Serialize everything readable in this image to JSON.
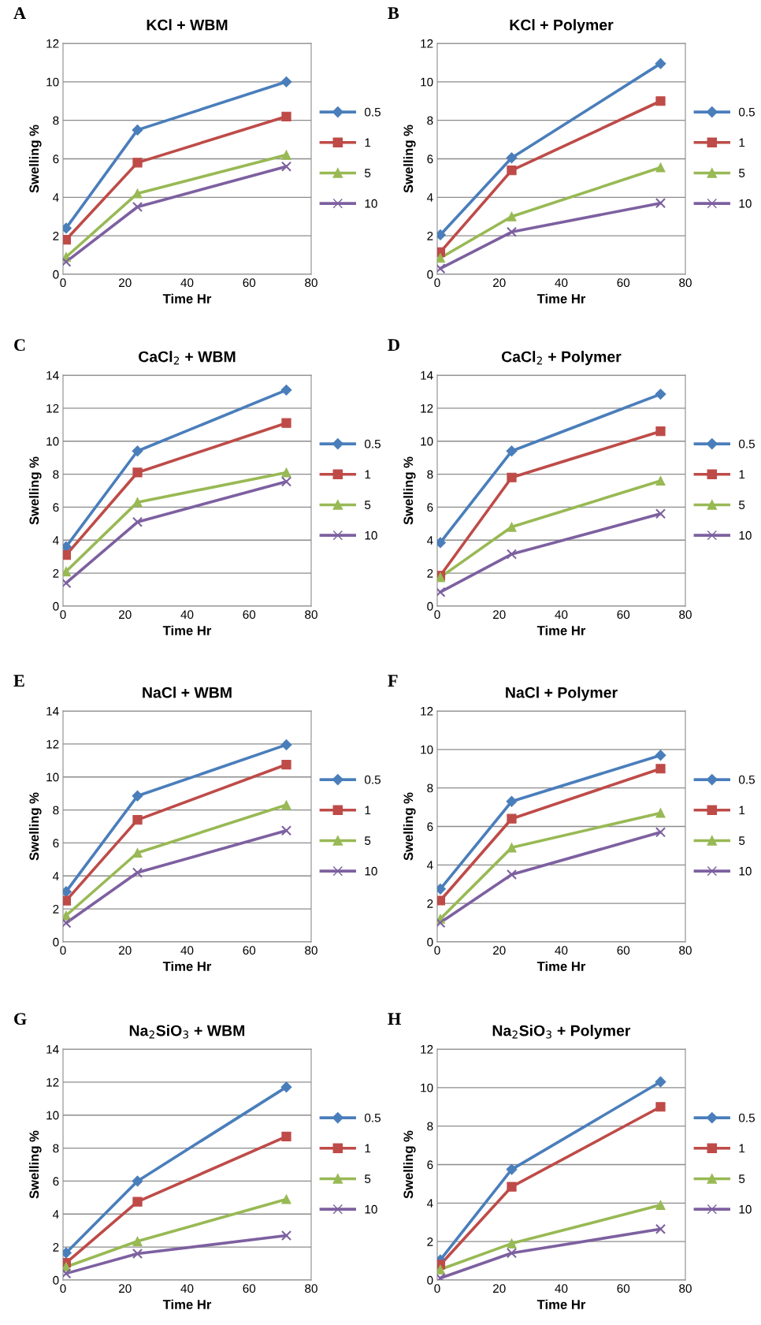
{
  "chart_data": [
    {
      "type": "line",
      "title": "KCl + WBM",
      "xlabel": "Time Hr",
      "ylabel": "Swelling %",
      "annotations": [
        "A"
      ],
      "x": [
        1,
        24,
        72
      ],
      "xlim": [
        0,
        80
      ],
      "xticks": [
        0,
        20,
        40,
        60,
        80
      ],
      "ylim": [
        0,
        12
      ],
      "yticks": [
        0,
        2,
        4,
        6,
        8,
        10,
        12
      ],
      "grid": "y",
      "legend": "right",
      "line_style": "solid",
      "series": [
        {
          "name": "0.5",
          "color": "#4a7ebb",
          "marker": "diamond",
          "values": [
            2.4,
            7.5,
            10.0
          ]
        },
        {
          "name": "1",
          "color": "#be4b48",
          "marker": "square",
          "values": [
            1.8,
            5.8,
            8.2
          ]
        },
        {
          "name": "5",
          "color": "#98b954",
          "marker": "triangle",
          "values": [
            0.9,
            4.2,
            6.2
          ]
        },
        {
          "name": "10",
          "color": "#7d60a0",
          "marker": "cross",
          "values": [
            0.65,
            3.5,
            5.6
          ]
        }
      ]
    },
    {
      "type": "line",
      "title": "KCl + Polymer",
      "xlabel": "Time Hr",
      "ylabel": "Swelling %",
      "annotations": [
        "B"
      ],
      "x": [
        1,
        24,
        72
      ],
      "xlim": [
        0,
        80
      ],
      "xticks": [
        0,
        20,
        40,
        60,
        80
      ],
      "ylim": [
        0,
        12
      ],
      "yticks": [
        0,
        2,
        4,
        6,
        8,
        10,
        12
      ],
      "grid": "y",
      "legend": "right",
      "line_style": "solid",
      "series": [
        {
          "name": "0.5",
          "color": "#4a7ebb",
          "marker": "diamond",
          "values": [
            2.05,
            6.05,
            10.95
          ]
        },
        {
          "name": "1",
          "color": "#be4b48",
          "marker": "square",
          "values": [
            1.15,
            5.4,
            9.0
          ]
        },
        {
          "name": "5",
          "color": "#98b954",
          "marker": "triangle",
          "values": [
            0.85,
            3.0,
            5.55
          ]
        },
        {
          "name": "10",
          "color": "#7d60a0",
          "marker": "cross",
          "values": [
            0.3,
            2.2,
            3.7
          ]
        }
      ]
    },
    {
      "type": "line",
      "title": "CaCl$_{2}$ + WBM",
      "xlabel": "Time Hr",
      "ylabel": "Swelling %",
      "annotations": [
        "C"
      ],
      "x": [
        1,
        24,
        72
      ],
      "xlim": [
        0,
        80
      ],
      "xticks": [
        0,
        20,
        40,
        60,
        80
      ],
      "ylim": [
        0,
        14
      ],
      "yticks": [
        0,
        2,
        4,
        6,
        8,
        10,
        12,
        14
      ],
      "grid": "y",
      "legend": "right",
      "line_style": "solid",
      "series": [
        {
          "name": "0.5",
          "color": "#4a7ebb",
          "marker": "diamond",
          "values": [
            3.6,
            9.4,
            13.1
          ]
        },
        {
          "name": "1",
          "color": "#be4b48",
          "marker": "square",
          "values": [
            3.1,
            8.1,
            11.1
          ]
        },
        {
          "name": "5",
          "color": "#98b954",
          "marker": "triangle",
          "values": [
            2.1,
            6.3,
            8.1
          ]
        },
        {
          "name": "10",
          "color": "#7d60a0",
          "marker": "cross",
          "values": [
            1.4,
            5.1,
            7.55
          ]
        }
      ]
    },
    {
      "type": "line",
      "title": "CaCl$_{2}$ + Polymer",
      "xlabel": "Time Hr",
      "ylabel": "Swelling %",
      "annotations": [
        "D"
      ],
      "x": [
        1,
        24,
        72
      ],
      "xlim": [
        0,
        80
      ],
      "xticks": [
        0,
        20,
        40,
        60,
        80
      ],
      "ylim": [
        0,
        14
      ],
      "yticks": [
        0,
        2,
        4,
        6,
        8,
        10,
        12,
        14
      ],
      "grid": "y",
      "legend": "right",
      "line_style": "solid",
      "series": [
        {
          "name": "0.5",
          "color": "#4a7ebb",
          "marker": "diamond",
          "values": [
            3.85,
            9.4,
            12.85
          ]
        },
        {
          "name": "1",
          "color": "#be4b48",
          "marker": "square",
          "values": [
            1.85,
            7.8,
            10.6
          ]
        },
        {
          "name": "5",
          "color": "#98b954",
          "marker": "triangle",
          "values": [
            1.75,
            4.8,
            7.6
          ]
        },
        {
          "name": "10",
          "color": "#7d60a0",
          "marker": "cross",
          "values": [
            0.85,
            3.15,
            5.6
          ]
        }
      ]
    },
    {
      "type": "line",
      "title": "NaCl + WBM",
      "xlabel": "Time Hr",
      "ylabel": "Swelling %",
      "annotations": [
        "E"
      ],
      "x": [
        1,
        24,
        72
      ],
      "xlim": [
        0,
        80
      ],
      "xticks": [
        0,
        20,
        40,
        60,
        80
      ],
      "ylim": [
        0,
        14
      ],
      "yticks": [
        0,
        2,
        4,
        6,
        8,
        10,
        12,
        14
      ],
      "grid": "y",
      "legend": "right",
      "line_style": "solid",
      "series": [
        {
          "name": "0.5",
          "color": "#4a7ebb",
          "marker": "diamond",
          "values": [
            3.05,
            8.85,
            11.95
          ]
        },
        {
          "name": "1",
          "color": "#be4b48",
          "marker": "square",
          "values": [
            2.5,
            7.4,
            10.75
          ]
        },
        {
          "name": "5",
          "color": "#98b954",
          "marker": "triangle",
          "values": [
            1.6,
            5.4,
            8.3
          ]
        },
        {
          "name": "10",
          "color": "#7d60a0",
          "marker": "cross",
          "values": [
            1.15,
            4.2,
            6.75
          ]
        }
      ]
    },
    {
      "type": "line",
      "title": "NaCl + Polymer",
      "xlabel": "Time Hr",
      "ylabel": "Swelling %",
      "annotations": [
        "F"
      ],
      "x": [
        1,
        24,
        72
      ],
      "xlim": [
        0,
        80
      ],
      "xticks": [
        0,
        20,
        40,
        60,
        80
      ],
      "ylim": [
        0,
        12
      ],
      "yticks": [
        0,
        2,
        4,
        6,
        8,
        10,
        12
      ],
      "grid": "y",
      "legend": "right",
      "line_style": "solid",
      "series": [
        {
          "name": "0.5",
          "color": "#4a7ebb",
          "marker": "diamond",
          "values": [
            2.75,
            7.3,
            9.7
          ]
        },
        {
          "name": "1",
          "color": "#be4b48",
          "marker": "square",
          "values": [
            2.15,
            6.4,
            9.0
          ]
        },
        {
          "name": "5",
          "color": "#98b954",
          "marker": "triangle",
          "values": [
            1.2,
            4.9,
            6.7
          ]
        },
        {
          "name": "10",
          "color": "#7d60a0",
          "marker": "cross",
          "values": [
            1.0,
            3.5,
            5.7
          ]
        }
      ]
    },
    {
      "type": "line",
      "title": "Na$_{2}$SiO$_{3}$ + WBM",
      "xlabel": "Time Hr",
      "ylabel": "Swelling %",
      "annotations": [
        "G"
      ],
      "x": [
        1,
        24,
        72
      ],
      "xlim": [
        0,
        80
      ],
      "xticks": [
        0,
        20,
        40,
        60,
        80
      ],
      "ylim": [
        0,
        14
      ],
      "yticks": [
        0,
        2,
        4,
        6,
        8,
        10,
        12,
        14
      ],
      "grid": "y",
      "legend": "right",
      "line_style": "solid",
      "series": [
        {
          "name": "0.5",
          "color": "#4a7ebb",
          "marker": "diamond",
          "values": [
            1.65,
            6.0,
            11.7
          ]
        },
        {
          "name": "1",
          "color": "#be4b48",
          "marker": "square",
          "values": [
            1.05,
            4.75,
            8.7
          ]
        },
        {
          "name": "5",
          "color": "#98b954",
          "marker": "triangle",
          "values": [
            0.8,
            2.35,
            4.9
          ]
        },
        {
          "name": "10",
          "color": "#7d60a0",
          "marker": "cross",
          "values": [
            0.4,
            1.6,
            2.7
          ]
        }
      ]
    },
    {
      "type": "line",
      "title": "Na$_{2}$SiO$_{3}$ + Polymer",
      "xlabel": "Time Hr",
      "ylabel": "Swelling %",
      "annotations": [
        "H"
      ],
      "x": [
        1,
        24,
        72
      ],
      "xlim": [
        0,
        80
      ],
      "xticks": [
        0,
        20,
        40,
        60,
        80
      ],
      "ylim": [
        0,
        12
      ],
      "yticks": [
        0,
        2,
        4,
        6,
        8,
        10,
        12
      ],
      "grid": "y",
      "legend": "right",
      "line_style": "solid",
      "series": [
        {
          "name": "0.5",
          "color": "#4a7ebb",
          "marker": "diamond",
          "values": [
            1.05,
            5.75,
            10.3
          ]
        },
        {
          "name": "1",
          "color": "#be4b48",
          "marker": "square",
          "values": [
            0.8,
            4.85,
            9.0
          ]
        },
        {
          "name": "5",
          "color": "#98b954",
          "marker": "triangle",
          "values": [
            0.55,
            1.9,
            3.9
          ]
        },
        {
          "name": "10",
          "color": "#7d60a0",
          "marker": "cross",
          "values": [
            0.1,
            1.4,
            2.65
          ]
        }
      ]
    }
  ]
}
